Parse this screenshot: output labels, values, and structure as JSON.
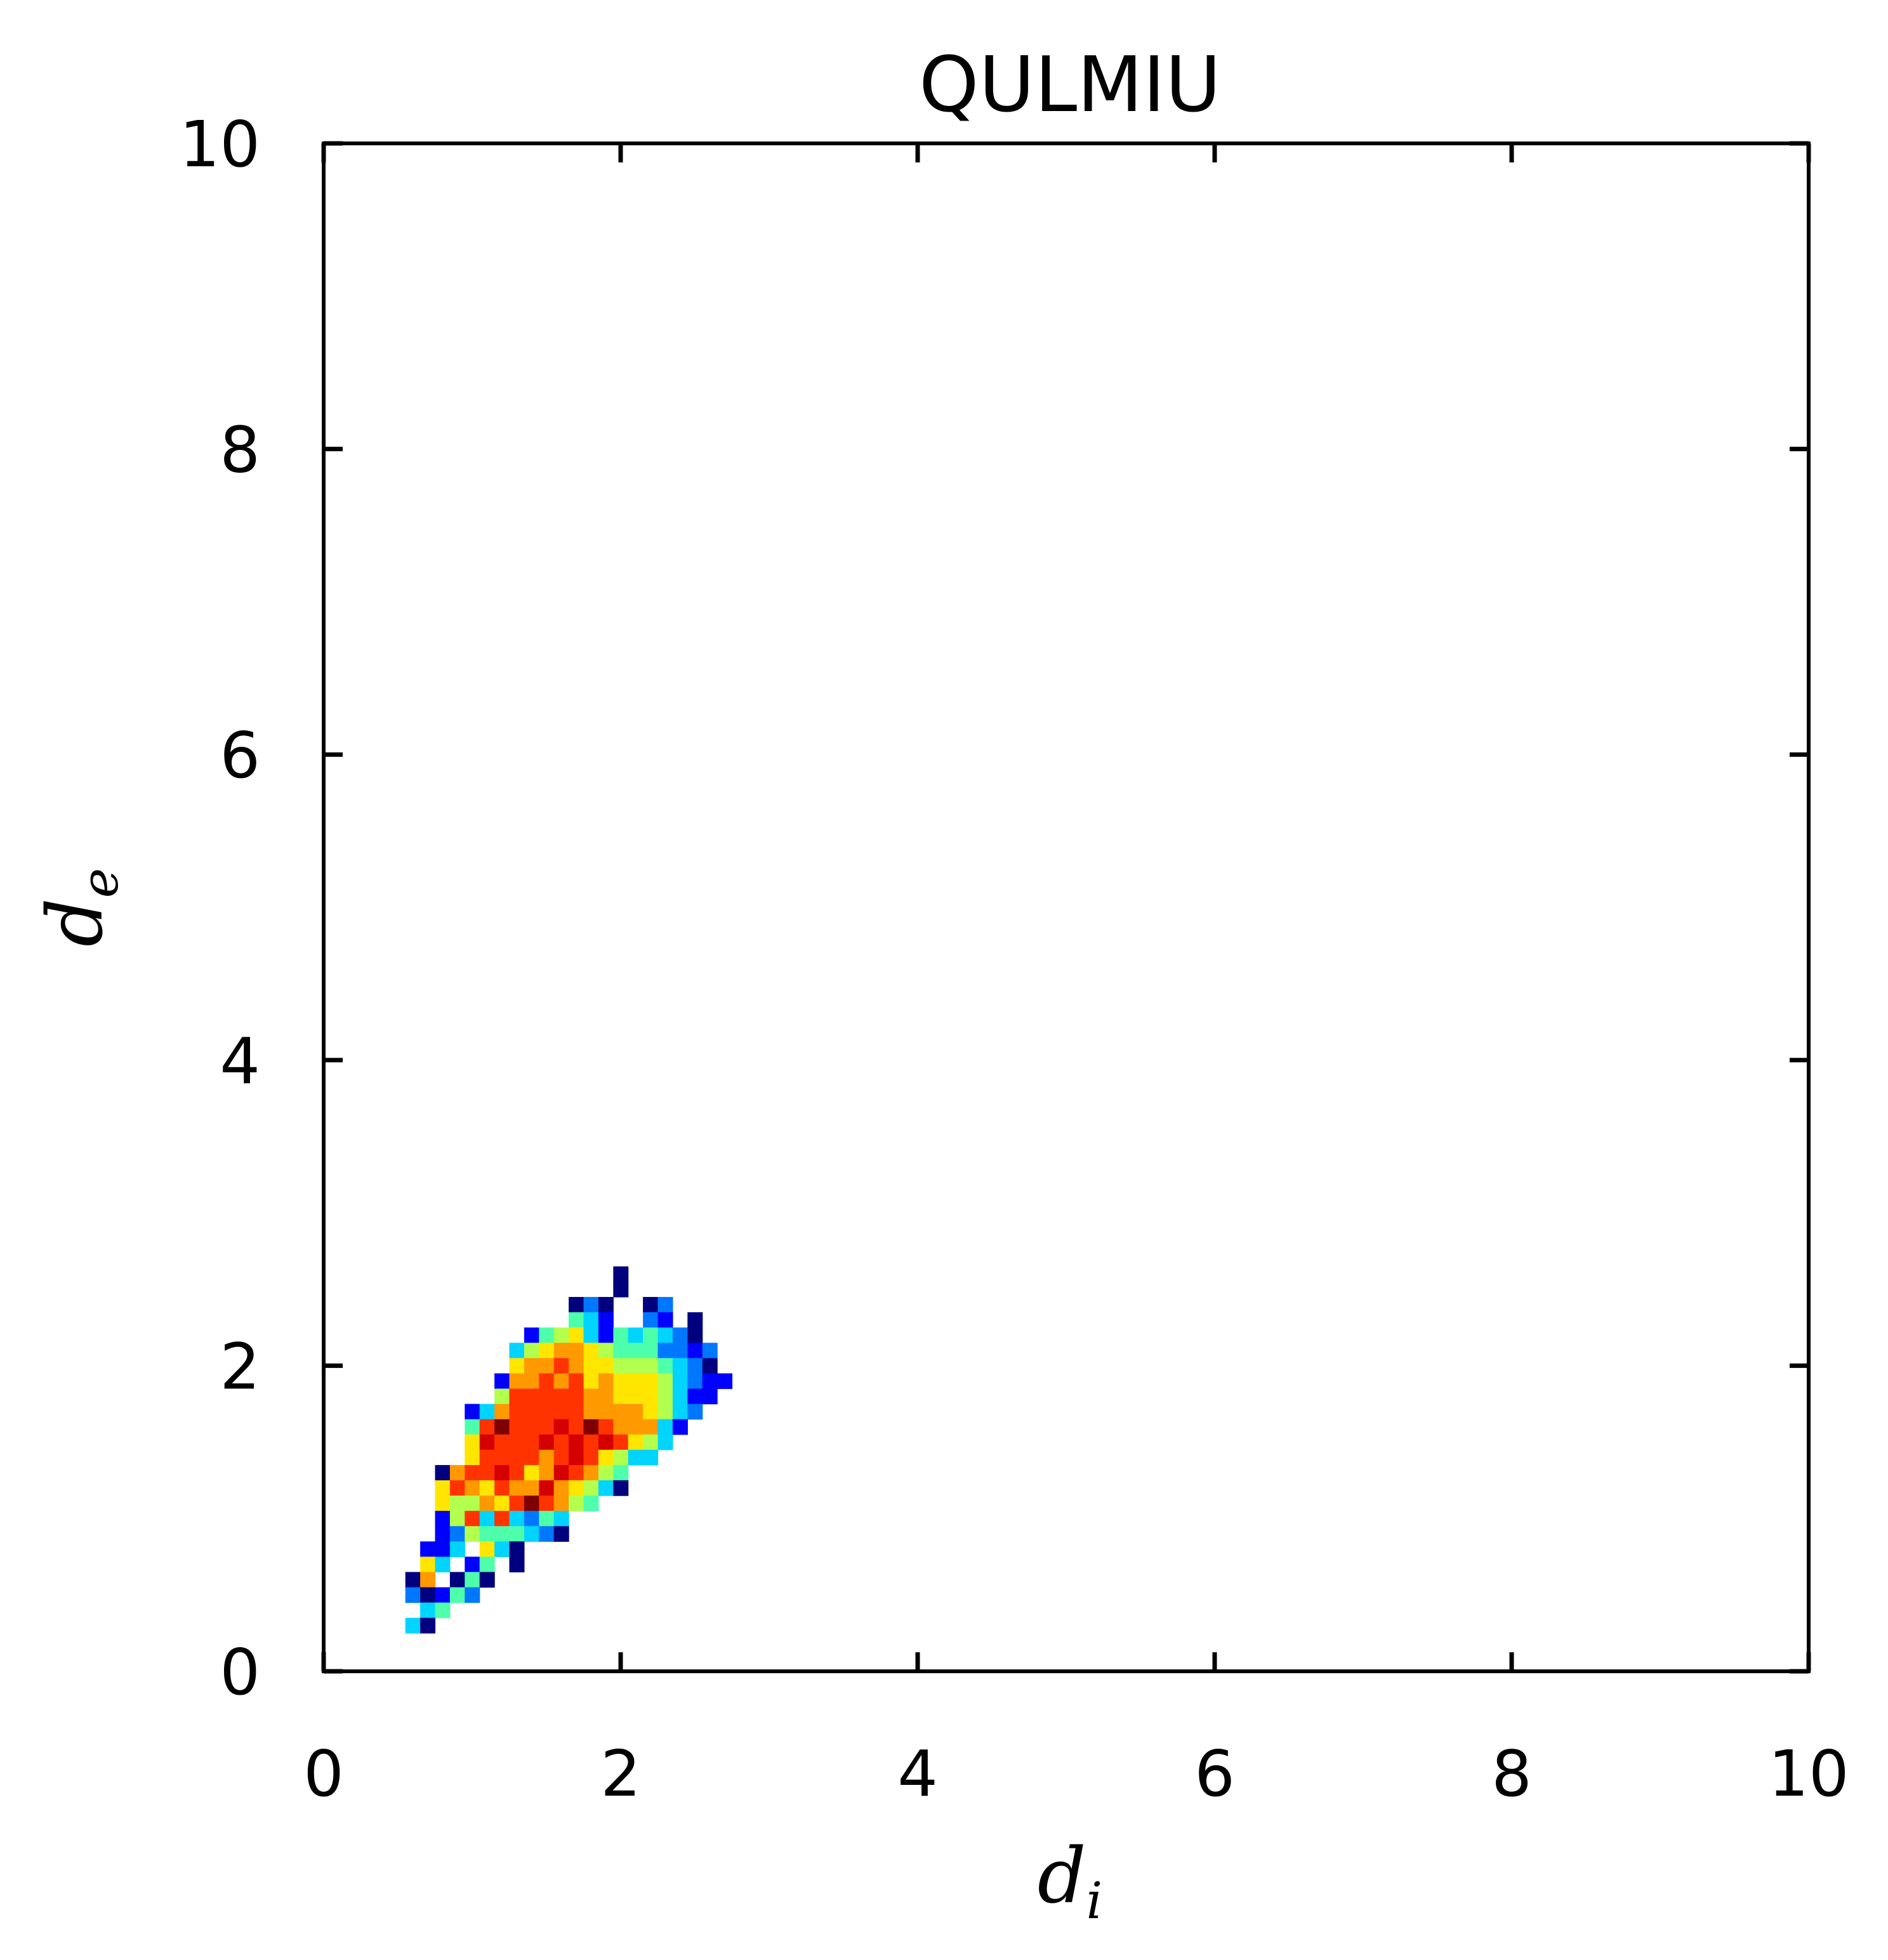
{
  "chart_data": {
    "type": "heatmap",
    "title": "QULMIU",
    "xlabel": {
      "base": "d",
      "subscript": "i"
    },
    "ylabel": {
      "base": "d",
      "subscript": "e"
    },
    "xlim": [
      0,
      10
    ],
    "ylim": [
      0,
      10
    ],
    "xticks": [
      "0",
      "2",
      "4",
      "6",
      "8",
      "10"
    ],
    "yticks": [
      "0",
      "2",
      "4",
      "6",
      "8",
      "10"
    ],
    "grid": false,
    "bin_size": 0.1,
    "colormap": "jet",
    "density_levels": {
      "1": "#00007f",
      "2": "#0000ff",
      "3": "#0077ff",
      "4": "#00d4ff",
      "5": "#4dffaa",
      "6": "#b3ff4d",
      "7": "#ffe600",
      "8": "#ff9900",
      "9": "#ff3300",
      "10": "#d40000",
      "11": "#7f0000"
    },
    "rows": [
      {
        "y": 2.6,
        "cells": [
          [
            2.0,
            1
          ]
        ]
      },
      {
        "y": 2.5,
        "cells": [
          [
            2.0,
            1
          ]
        ]
      },
      {
        "y": 2.4,
        "cells": [
          [
            1.7,
            1
          ],
          [
            1.8,
            3
          ],
          [
            1.9,
            1
          ],
          [
            2.2,
            1
          ],
          [
            2.3,
            3
          ]
        ]
      },
      {
        "y": 2.3,
        "cells": [
          [
            1.7,
            5
          ],
          [
            1.8,
            4
          ],
          [
            1.9,
            2
          ],
          [
            2.2,
            3
          ],
          [
            2.3,
            2
          ],
          [
            2.5,
            1
          ]
        ]
      },
      {
        "y": 2.2,
        "cells": [
          [
            1.4,
            2
          ],
          [
            1.5,
            5
          ],
          [
            1.6,
            6
          ],
          [
            1.7,
            7
          ],
          [
            1.8,
            4
          ],
          [
            1.9,
            2
          ],
          [
            2.0,
            5
          ],
          [
            2.1,
            4
          ],
          [
            2.2,
            5
          ],
          [
            2.3,
            4
          ],
          [
            2.4,
            3
          ],
          [
            2.5,
            1
          ]
        ]
      },
      {
        "y": 2.1,
        "cells": [
          [
            1.3,
            4
          ],
          [
            1.4,
            6
          ],
          [
            1.5,
            7
          ],
          [
            1.6,
            8
          ],
          [
            1.7,
            8
          ],
          [
            1.8,
            7
          ],
          [
            1.9,
            6
          ],
          [
            2.0,
            5
          ],
          [
            2.1,
            5
          ],
          [
            2.2,
            5
          ],
          [
            2.3,
            3
          ],
          [
            2.4,
            3
          ],
          [
            2.5,
            2
          ],
          [
            2.6,
            3
          ]
        ]
      },
      {
        "y": 2.0,
        "cells": [
          [
            1.3,
            7
          ],
          [
            1.4,
            8
          ],
          [
            1.5,
            8
          ],
          [
            1.6,
            9
          ],
          [
            1.7,
            8
          ],
          [
            1.8,
            7
          ],
          [
            1.9,
            7
          ],
          [
            2.0,
            6
          ],
          [
            2.1,
            6
          ],
          [
            2.2,
            6
          ],
          [
            2.3,
            5
          ],
          [
            2.4,
            4
          ],
          [
            2.5,
            3
          ],
          [
            2.6,
            1
          ]
        ]
      },
      {
        "y": 1.9,
        "cells": [
          [
            1.2,
            2
          ],
          [
            1.3,
            8
          ],
          [
            1.4,
            8
          ],
          [
            1.5,
            9
          ],
          [
            1.6,
            8
          ],
          [
            1.7,
            9
          ],
          [
            1.8,
            7
          ],
          [
            1.9,
            8
          ],
          [
            2.0,
            7
          ],
          [
            2.1,
            7
          ],
          [
            2.2,
            7
          ],
          [
            2.3,
            6
          ],
          [
            2.4,
            4
          ],
          [
            2.5,
            3
          ],
          [
            2.6,
            2
          ],
          [
            2.7,
            2
          ]
        ]
      },
      {
        "y": 1.8,
        "cells": [
          [
            1.2,
            6
          ],
          [
            1.3,
            9
          ],
          [
            1.4,
            9
          ],
          [
            1.5,
            9
          ],
          [
            1.6,
            9
          ],
          [
            1.7,
            9
          ],
          [
            1.8,
            8
          ],
          [
            1.9,
            8
          ],
          [
            2.0,
            7
          ],
          [
            2.1,
            7
          ],
          [
            2.2,
            7
          ],
          [
            2.3,
            6
          ],
          [
            2.4,
            4
          ],
          [
            2.5,
            2
          ],
          [
            2.6,
            2
          ]
        ]
      },
      {
        "y": 1.7,
        "cells": [
          [
            1.0,
            2
          ],
          [
            1.1,
            4
          ],
          [
            1.2,
            8
          ],
          [
            1.3,
            9
          ],
          [
            1.4,
            9
          ],
          [
            1.5,
            9
          ],
          [
            1.6,
            9
          ],
          [
            1.7,
            9
          ],
          [
            1.8,
            8
          ],
          [
            1.9,
            8
          ],
          [
            2.0,
            8
          ],
          [
            2.1,
            8
          ],
          [
            2.2,
            7
          ],
          [
            2.3,
            6
          ],
          [
            2.4,
            4
          ],
          [
            2.5,
            3
          ]
        ]
      },
      {
        "y": 1.6,
        "cells": [
          [
            1.0,
            5
          ],
          [
            1.1,
            9
          ],
          [
            1.2,
            11
          ],
          [
            1.3,
            9
          ],
          [
            1.4,
            9
          ],
          [
            1.5,
            9
          ],
          [
            1.6,
            10
          ],
          [
            1.7,
            9
          ],
          [
            1.8,
            11
          ],
          [
            1.9,
            9
          ],
          [
            2.0,
            8
          ],
          [
            2.1,
            8
          ],
          [
            2.2,
            8
          ],
          [
            2.3,
            4
          ],
          [
            2.4,
            2
          ]
        ]
      },
      {
        "y": 1.5,
        "cells": [
          [
            1.0,
            7
          ],
          [
            1.1,
            10
          ],
          [
            1.2,
            9
          ],
          [
            1.3,
            9
          ],
          [
            1.4,
            9
          ],
          [
            1.5,
            10
          ],
          [
            1.6,
            9
          ],
          [
            1.7,
            10
          ],
          [
            1.8,
            9
          ],
          [
            1.9,
            10
          ],
          [
            2.0,
            9
          ],
          [
            2.1,
            7
          ],
          [
            2.2,
            6
          ],
          [
            2.3,
            4
          ]
        ]
      },
      {
        "y": 1.4,
        "cells": [
          [
            1.0,
            7
          ],
          [
            1.1,
            9
          ],
          [
            1.2,
            9
          ],
          [
            1.3,
            9
          ],
          [
            1.4,
            9
          ],
          [
            1.5,
            8
          ],
          [
            1.6,
            9
          ],
          [
            1.7,
            10
          ],
          [
            1.8,
            9
          ],
          [
            1.9,
            7
          ],
          [
            2.0,
            6
          ],
          [
            2.1,
            4
          ],
          [
            2.2,
            4
          ]
        ]
      },
      {
        "y": 1.3,
        "cells": [
          [
            0.8,
            1
          ],
          [
            0.9,
            8
          ],
          [
            1.0,
            9
          ],
          [
            1.1,
            9
          ],
          [
            1.2,
            10
          ],
          [
            1.3,
            9
          ],
          [
            1.4,
            7
          ],
          [
            1.5,
            8
          ],
          [
            1.6,
            10
          ],
          [
            1.7,
            9
          ],
          [
            1.8,
            8
          ],
          [
            1.9,
            6
          ],
          [
            2.0,
            5
          ]
        ]
      },
      {
        "y": 1.2,
        "cells": [
          [
            0.8,
            7
          ],
          [
            0.9,
            9
          ],
          [
            1.0,
            8
          ],
          [
            1.1,
            7
          ],
          [
            1.2,
            9
          ],
          [
            1.3,
            8
          ],
          [
            1.4,
            8
          ],
          [
            1.5,
            10
          ],
          [
            1.6,
            8
          ],
          [
            1.7,
            7
          ],
          [
            1.8,
            6
          ],
          [
            1.9,
            4
          ],
          [
            2.0,
            1
          ]
        ]
      },
      {
        "y": 1.1,
        "cells": [
          [
            0.8,
            7
          ],
          [
            0.9,
            6
          ],
          [
            1.0,
            6
          ],
          [
            1.1,
            8
          ],
          [
            1.2,
            7
          ],
          [
            1.3,
            9
          ],
          [
            1.4,
            11
          ],
          [
            1.5,
            9
          ],
          [
            1.6,
            8
          ],
          [
            1.7,
            6
          ],
          [
            1.8,
            5
          ]
        ]
      },
      {
        "y": 1.0,
        "cells": [
          [
            0.8,
            2
          ],
          [
            0.9,
            6
          ],
          [
            1.0,
            9
          ],
          [
            1.1,
            4
          ],
          [
            1.2,
            9
          ],
          [
            1.3,
            4
          ],
          [
            1.4,
            3
          ],
          [
            1.5,
            5
          ],
          [
            1.6,
            4
          ]
        ]
      },
      {
        "y": 0.9,
        "cells": [
          [
            0.8,
            2
          ],
          [
            0.9,
            3
          ],
          [
            1.0,
            6
          ],
          [
            1.1,
            5
          ],
          [
            1.2,
            5
          ],
          [
            1.3,
            5
          ],
          [
            1.4,
            4
          ],
          [
            1.5,
            3
          ],
          [
            1.6,
            1
          ]
        ]
      },
      {
        "y": 0.8,
        "cells": [
          [
            0.7,
            2
          ],
          [
            0.8,
            2
          ],
          [
            0.9,
            4
          ],
          [
            1.1,
            7
          ],
          [
            1.2,
            4
          ],
          [
            1.3,
            1
          ]
        ]
      },
      {
        "y": 0.7,
        "cells": [
          [
            0.7,
            7
          ],
          [
            0.8,
            4
          ],
          [
            1.0,
            2
          ],
          [
            1.1,
            5
          ],
          [
            1.3,
            1
          ]
        ]
      },
      {
        "y": 0.6,
        "cells": [
          [
            0.6,
            1
          ],
          [
            0.7,
            8
          ],
          [
            0.9,
            1
          ],
          [
            1.0,
            5
          ],
          [
            1.1,
            1
          ]
        ]
      },
      {
        "y": 0.5,
        "cells": [
          [
            0.6,
            3
          ],
          [
            0.7,
            1
          ],
          [
            0.8,
            2
          ],
          [
            0.9,
            5
          ],
          [
            1.0,
            3
          ]
        ]
      },
      {
        "y": 0.4,
        "cells": [
          [
            0.7,
            4
          ],
          [
            0.8,
            5
          ]
        ]
      },
      {
        "y": 0.3,
        "cells": [
          [
            0.6,
            4
          ],
          [
            0.7,
            1
          ]
        ]
      }
    ]
  }
}
